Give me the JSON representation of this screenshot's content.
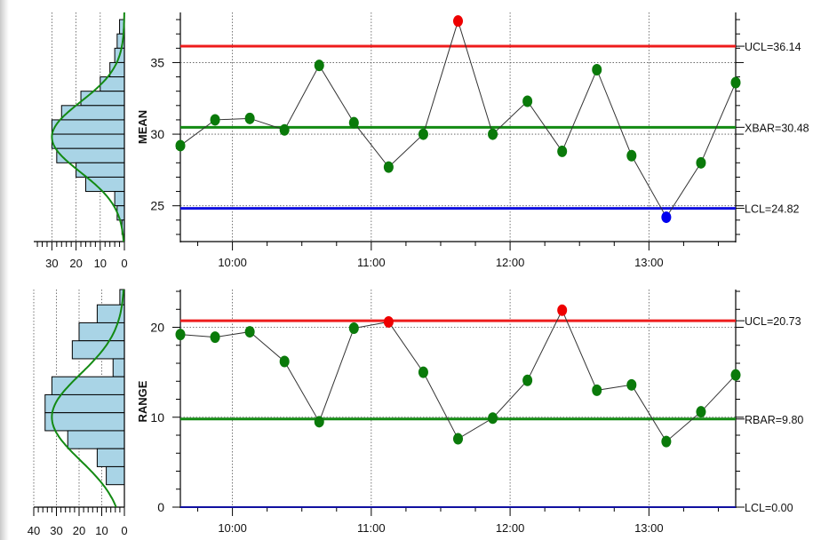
{
  "chart_data": [
    {
      "type": "line",
      "ylabel": "MEAN",
      "ylim": [
        22.5,
        38.5
      ],
      "yticks": [
        25,
        30,
        35
      ],
      "x_ticks": [
        "10:00",
        "11:00",
        "12:00",
        "13:00"
      ],
      "x_tick_times": [
        10.0,
        11.0,
        12.0,
        13.0
      ],
      "xlim": [
        9.625,
        13.625
      ],
      "grid": "dotted",
      "series": [
        {
          "times": [
            9.625,
            9.875,
            10.125,
            10.375,
            10.625,
            10.875,
            11.125,
            11.375,
            11.625,
            11.875,
            12.125,
            12.375,
            12.625,
            12.875,
            13.125,
            13.375,
            13.625
          ],
          "values": [
            29.2,
            31.0,
            31.1,
            30.3,
            34.8,
            30.8,
            27.7,
            30.0,
            37.9,
            30.0,
            32.3,
            28.8,
            34.5,
            28.5,
            24.2,
            28.0,
            33.6
          ]
        }
      ],
      "point_colors": [
        "#0a7a0a",
        "#0a7a0a",
        "#0a7a0a",
        "#0a7a0a",
        "#0a7a0a",
        "#0a7a0a",
        "#0a7a0a",
        "#0a7a0a",
        "#ee0000",
        "#0a7a0a",
        "#0a7a0a",
        "#0a7a0a",
        "#0a7a0a",
        "#0a7a0a",
        "#0000ee",
        "#0a7a0a",
        "#0a7a0a"
      ],
      "limits": [
        {
          "value": 36.14,
          "label": "UCL=36.14",
          "color": "#ee1c1c"
        },
        {
          "value": 30.48,
          "label": "XBAR=30.48",
          "color": "#138a13"
        },
        {
          "value": 24.82,
          "label": "LCL=24.82",
          "color": "#1010e0"
        }
      ],
      "histogram": {
        "xticks": [
          30,
          20,
          10,
          0
        ],
        "xlim": [
          0,
          37.5
        ],
        "bins": [
          {
            "lo": 37.0,
            "hi": 38.0,
            "count": 2
          },
          {
            "lo": 36.0,
            "hi": 37.0,
            "count": 3
          },
          {
            "lo": 35.0,
            "hi": 36.0,
            "count": 4
          },
          {
            "lo": 34.0,
            "hi": 35.0,
            "count": 6
          },
          {
            "lo": 33.0,
            "hi": 34.0,
            "count": 10
          },
          {
            "lo": 32.0,
            "hi": 33.0,
            "count": 18
          },
          {
            "lo": 31.0,
            "hi": 32.0,
            "count": 26
          },
          {
            "lo": 30.0,
            "hi": 31.0,
            "count": 30
          },
          {
            "lo": 29.0,
            "hi": 30.0,
            "count": 30
          },
          {
            "lo": 28.0,
            "hi": 29.0,
            "count": 28
          },
          {
            "lo": 27.0,
            "hi": 28.0,
            "count": 20
          },
          {
            "lo": 26.0,
            "hi": 27.0,
            "count": 16
          },
          {
            "lo": 25.0,
            "hi": 26.0,
            "count": 4
          },
          {
            "lo": 24.0,
            "hi": 25.0,
            "count": 3
          },
          {
            "lo": 23.0,
            "hi": 24.0,
            "count": 1
          }
        ],
        "curve": {
          "mean": 29.8,
          "sd": 2.45,
          "peak": 30
        }
      }
    },
    {
      "type": "line",
      "ylabel": "RANGE",
      "ylim": [
        0,
        24.2
      ],
      "yticks": [
        0,
        10,
        20
      ],
      "x_ticks": [
        "10:00",
        "11:00",
        "12:00",
        "13:00"
      ],
      "x_tick_times": [
        10.0,
        11.0,
        12.0,
        13.0
      ],
      "xlim": [
        9.625,
        13.625
      ],
      "grid": "dotted",
      "series": [
        {
          "times": [
            9.625,
            9.875,
            10.125,
            10.375,
            10.625,
            10.875,
            11.125,
            11.375,
            11.625,
            11.875,
            12.125,
            12.375,
            12.625,
            12.875,
            13.125,
            13.375,
            13.625
          ],
          "values": [
            19.2,
            18.9,
            19.5,
            16.2,
            9.5,
            19.9,
            20.6,
            15.0,
            7.6,
            9.9,
            14.1,
            21.9,
            13.0,
            13.6,
            7.3,
            10.6,
            14.7
          ]
        }
      ],
      "point_colors": [
        "#0a7a0a",
        "#0a7a0a",
        "#0a7a0a",
        "#0a7a0a",
        "#0a7a0a",
        "#0a7a0a",
        "#ee0000",
        "#0a7a0a",
        "#0a7a0a",
        "#0a7a0a",
        "#0a7a0a",
        "#ee0000",
        "#0a7a0a",
        "#0a7a0a",
        "#0a7a0a",
        "#0a7a0a",
        "#0a7a0a"
      ],
      "limits": [
        {
          "value": 20.73,
          "label": "UCL=20.73",
          "color": "#ee1c1c"
        },
        {
          "value": 9.8,
          "label": "RBAR=9.80",
          "color": "#138a13"
        },
        {
          "value": 0.0,
          "label": "LCL=0.00",
          "color": "#1010a0"
        }
      ],
      "histogram": {
        "xticks": [
          40,
          30,
          20,
          10,
          0
        ],
        "xlim": [
          0,
          40
        ],
        "bins": [
          {
            "lo": 22.5,
            "hi": 24.5,
            "count": 2
          },
          {
            "lo": 20.5,
            "hi": 22.5,
            "count": 12
          },
          {
            "lo": 18.5,
            "hi": 20.5,
            "count": 20
          },
          {
            "lo": 16.5,
            "hi": 18.5,
            "count": 23
          },
          {
            "lo": 14.5,
            "hi": 16.5,
            "count": 5
          },
          {
            "lo": 12.5,
            "hi": 14.5,
            "count": 32
          },
          {
            "lo": 10.5,
            "hi": 12.5,
            "count": 35
          },
          {
            "lo": 8.5,
            "hi": 10.5,
            "count": 35
          },
          {
            "lo": 6.5,
            "hi": 8.5,
            "count": 25
          },
          {
            "lo": 4.5,
            "hi": 6.5,
            "count": 12
          },
          {
            "lo": 2.5,
            "hi": 4.5,
            "count": 8
          }
        ],
        "curve": {
          "mean": 10.0,
          "sd": 4.8,
          "peak": 32
        }
      }
    }
  ]
}
